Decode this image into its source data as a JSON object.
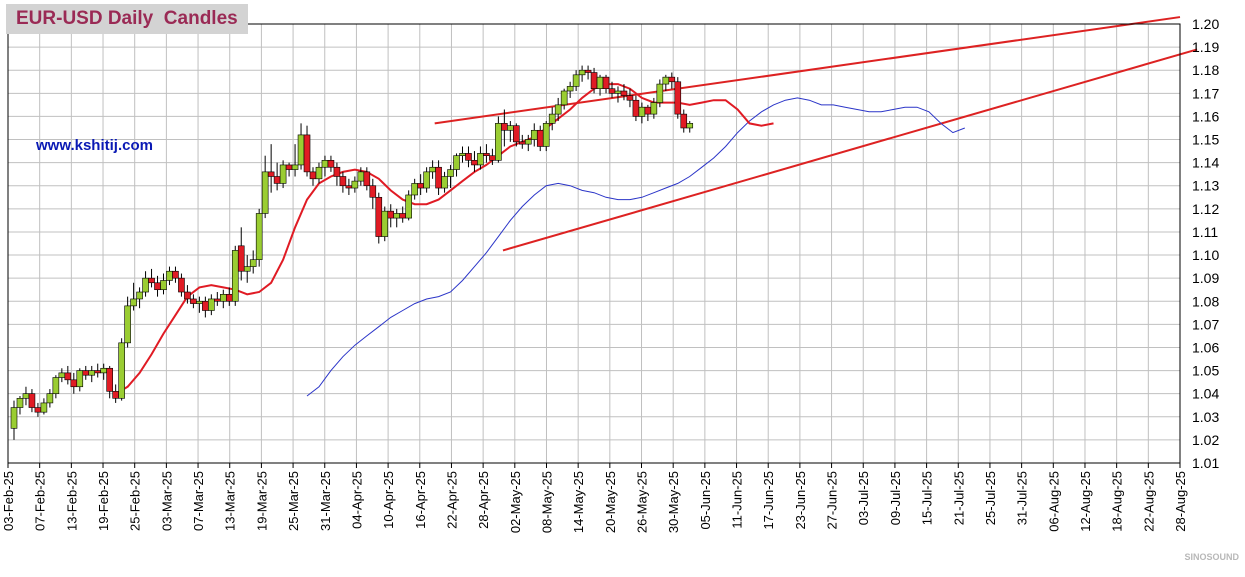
{
  "title": "EUR-USD Daily  Candles",
  "website": "www.kshitij.com",
  "watermark": "SINOSOUND",
  "colors": {
    "up_candle": "#9acd32",
    "down_candle": "#e01b24",
    "wick": "#000000",
    "fast_ma": "#e01b24",
    "slow_ma": "#2b35c8",
    "trendline": "#dd2222",
    "grid": "#c0c0c0",
    "title_color": "#9a2a55",
    "title_bg": "#d3d3d3",
    "website_color": "#0a19b4"
  },
  "chart_data": {
    "type": "candlestick",
    "title": "EUR-USD Daily  Candles",
    "ylim": [
      1.01,
      1.2
    ],
    "y_ticks": [
      "1.01",
      "1.02",
      "1.03",
      "1.04",
      "1.05",
      "1.06",
      "1.07",
      "1.08",
      "1.09",
      "1.10",
      "1.11",
      "1.12",
      "1.13",
      "1.14",
      "1.15",
      "1.16",
      "1.17",
      "1.18",
      "1.19",
      "1.20"
    ],
    "x_range": [
      "2025-02-03",
      "2025-08-28"
    ],
    "x_tick_labels": [
      "03-Feb-25",
      "07-Feb-25",
      "13-Feb-25",
      "19-Feb-25",
      "25-Feb-25",
      "03-Mar-25",
      "07-Mar-25",
      "13-Mar-25",
      "19-Mar-25",
      "25-Mar-25",
      "31-Mar-25",
      "04-Apr-25",
      "10-Apr-25",
      "16-Apr-25",
      "22-Apr-25",
      "28-Apr-25",
      "02-May-25",
      "08-May-25",
      "14-May-25",
      "20-May-25",
      "26-May-25",
      "30-May-25",
      "05-Jun-25",
      "11-Jun-25",
      "17-Jun-25",
      "23-Jun-25",
      "27-Jun-25",
      "03-Jul-25",
      "09-Jul-25",
      "15-Jul-25",
      "21-Jul-25",
      "25-Jul-25",
      "31-Jul-25",
      "06-Aug-25",
      "12-Aug-25",
      "18-Aug-25",
      "22-Aug-25",
      "28-Aug-25"
    ],
    "grid": true,
    "candles": [
      [
        0,
        1.025,
        1.037,
        1.02,
        1.034
      ],
      [
        1,
        1.034,
        1.039,
        1.031,
        1.038
      ],
      [
        2,
        1.038,
        1.043,
        1.035,
        1.04
      ],
      [
        3,
        1.04,
        1.042,
        1.032,
        1.034
      ],
      [
        4,
        1.034,
        1.036,
        1.03,
        1.032
      ],
      [
        5,
        1.032,
        1.038,
        1.031,
        1.036
      ],
      [
        6,
        1.036,
        1.042,
        1.034,
        1.04
      ],
      [
        7,
        1.04,
        1.048,
        1.038,
        1.047
      ],
      [
        8,
        1.047,
        1.051,
        1.045,
        1.049
      ],
      [
        9,
        1.049,
        1.052,
        1.044,
        1.046
      ],
      [
        10,
        1.046,
        1.049,
        1.04,
        1.043
      ],
      [
        11,
        1.043,
        1.051,
        1.041,
        1.05
      ],
      [
        12,
        1.05,
        1.052,
        1.046,
        1.048
      ],
      [
        13,
        1.048,
        1.052,
        1.045,
        1.05
      ],
      [
        14,
        1.05,
        1.053,
        1.047,
        1.049
      ],
      [
        15,
        1.049,
        1.053,
        1.046,
        1.051
      ],
      [
        16,
        1.051,
        1.052,
        1.038,
        1.041
      ],
      [
        17,
        1.041,
        1.044,
        1.036,
        1.038
      ],
      [
        18,
        1.038,
        1.064,
        1.037,
        1.062
      ],
      [
        19,
        1.062,
        1.082,
        1.06,
        1.078
      ],
      [
        20,
        1.078,
        1.088,
        1.076,
        1.081
      ],
      [
        21,
        1.081,
        1.086,
        1.077,
        1.084
      ],
      [
        22,
        1.084,
        1.093,
        1.082,
        1.09
      ],
      [
        23,
        1.09,
        1.094,
        1.086,
        1.088
      ],
      [
        24,
        1.088,
        1.091,
        1.082,
        1.085
      ],
      [
        25,
        1.085,
        1.092,
        1.083,
        1.089
      ],
      [
        26,
        1.089,
        1.095,
        1.087,
        1.093
      ],
      [
        27,
        1.093,
        1.095,
        1.088,
        1.09
      ],
      [
        28,
        1.09,
        1.092,
        1.082,
        1.084
      ],
      [
        29,
        1.084,
        1.087,
        1.079,
        1.081
      ],
      [
        30,
        1.081,
        1.083,
        1.077,
        1.079
      ],
      [
        31,
        1.079,
        1.082,
        1.075,
        1.08
      ],
      [
        32,
        1.08,
        1.082,
        1.073,
        1.076
      ],
      [
        33,
        1.076,
        1.083,
        1.074,
        1.081
      ],
      [
        34,
        1.081,
        1.084,
        1.078,
        1.08
      ],
      [
        35,
        1.08,
        1.085,
        1.077,
        1.083
      ],
      [
        36,
        1.083,
        1.086,
        1.078,
        1.08
      ],
      [
        37,
        1.08,
        1.104,
        1.078,
        1.102
      ],
      [
        38,
        1.104,
        1.112,
        1.089,
        1.093
      ],
      [
        39,
        1.093,
        1.1,
        1.088,
        1.095
      ],
      [
        40,
        1.095,
        1.102,
        1.092,
        1.098
      ],
      [
        41,
        1.098,
        1.12,
        1.095,
        1.118
      ],
      [
        42,
        1.118,
        1.143,
        1.116,
        1.136
      ],
      [
        43,
        1.136,
        1.148,
        1.127,
        1.134
      ],
      [
        44,
        1.134,
        1.14,
        1.128,
        1.131
      ],
      [
        45,
        1.131,
        1.141,
        1.129,
        1.139
      ],
      [
        46,
        1.139,
        1.14,
        1.134,
        1.137
      ],
      [
        47,
        1.137,
        1.148,
        1.134,
        1.139
      ],
      [
        48,
        1.139,
        1.157,
        1.137,
        1.152
      ],
      [
        49,
        1.152,
        1.156,
        1.134,
        1.136
      ],
      [
        50,
        1.136,
        1.138,
        1.13,
        1.133
      ],
      [
        51,
        1.133,
        1.14,
        1.131,
        1.138
      ],
      [
        52,
        1.138,
        1.143,
        1.134,
        1.141
      ],
      [
        53,
        1.141,
        1.143,
        1.136,
        1.138
      ],
      [
        54,
        1.138,
        1.14,
        1.13,
        1.134
      ],
      [
        55,
        1.134,
        1.136,
        1.127,
        1.13
      ],
      [
        56,
        1.13,
        1.133,
        1.126,
        1.129
      ],
      [
        57,
        1.129,
        1.134,
        1.127,
        1.132
      ],
      [
        58,
        1.132,
        1.138,
        1.13,
        1.136
      ],
      [
        59,
        1.136,
        1.138,
        1.128,
        1.13
      ],
      [
        60,
        1.13,
        1.133,
        1.12,
        1.125
      ],
      [
        61,
        1.125,
        1.127,
        1.105,
        1.108
      ],
      [
        62,
        1.108,
        1.121,
        1.106,
        1.119
      ],
      [
        63,
        1.119,
        1.122,
        1.112,
        1.116
      ],
      [
        64,
        1.116,
        1.12,
        1.112,
        1.118
      ],
      [
        65,
        1.118,
        1.121,
        1.114,
        1.116
      ],
      [
        66,
        1.116,
        1.128,
        1.115,
        1.126
      ],
      [
        67,
        1.126,
        1.133,
        1.124,
        1.131
      ],
      [
        68,
        1.131,
        1.135,
        1.126,
        1.129
      ],
      [
        69,
        1.129,
        1.138,
        1.127,
        1.136
      ],
      [
        70,
        1.136,
        1.141,
        1.133,
        1.138
      ],
      [
        71,
        1.138,
        1.141,
        1.126,
        1.129
      ],
      [
        72,
        1.129,
        1.136,
        1.127,
        1.134
      ],
      [
        73,
        1.134,
        1.139,
        1.129,
        1.137
      ],
      [
        74,
        1.137,
        1.144,
        1.134,
        1.143
      ],
      [
        75,
        1.143,
        1.147,
        1.14,
        1.144
      ],
      [
        76,
        1.144,
        1.147,
        1.138,
        1.141
      ],
      [
        77,
        1.141,
        1.145,
        1.136,
        1.139
      ],
      [
        78,
        1.139,
        1.147,
        1.137,
        1.144
      ],
      [
        79,
        1.144,
        1.148,
        1.14,
        1.143
      ],
      [
        80,
        1.143,
        1.146,
        1.139,
        1.141
      ],
      [
        81,
        1.141,
        1.16,
        1.14,
        1.157
      ],
      [
        82,
        1.157,
        1.163,
        1.147,
        1.154
      ],
      [
        83,
        1.154,
        1.158,
        1.149,
        1.156
      ],
      [
        84,
        1.156,
        1.157,
        1.147,
        1.149
      ],
      [
        85,
        1.149,
        1.152,
        1.146,
        1.148
      ],
      [
        86,
        1.148,
        1.152,
        1.145,
        1.15
      ],
      [
        87,
        1.15,
        1.157,
        1.147,
        1.154
      ],
      [
        88,
        1.154,
        1.156,
        1.145,
        1.147
      ],
      [
        89,
        1.147,
        1.158,
        1.145,
        1.157
      ],
      [
        90,
        1.157,
        1.164,
        1.154,
        1.161
      ],
      [
        91,
        1.161,
        1.168,
        1.158,
        1.165
      ],
      [
        92,
        1.165,
        1.172,
        1.163,
        1.171
      ],
      [
        93,
        1.171,
        1.175,
        1.168,
        1.173
      ],
      [
        94,
        1.173,
        1.18,
        1.171,
        1.178
      ],
      [
        95,
        1.178,
        1.182,
        1.175,
        1.18
      ],
      [
        96,
        1.18,
        1.182,
        1.176,
        1.179
      ],
      [
        97,
        1.179,
        1.181,
        1.17,
        1.172
      ],
      [
        98,
        1.172,
        1.178,
        1.169,
        1.177
      ],
      [
        99,
        1.177,
        1.178,
        1.17,
        1.172
      ],
      [
        100,
        1.172,
        1.175,
        1.168,
        1.17
      ],
      [
        101,
        1.17,
        1.173,
        1.166,
        1.171
      ],
      [
        102,
        1.171,
        1.174,
        1.167,
        1.169
      ],
      [
        103,
        1.169,
        1.172,
        1.164,
        1.167
      ],
      [
        104,
        1.167,
        1.169,
        1.158,
        1.16
      ],
      [
        105,
        1.16,
        1.166,
        1.157,
        1.164
      ],
      [
        106,
        1.164,
        1.165,
        1.158,
        1.161
      ],
      [
        107,
        1.161,
        1.168,
        1.159,
        1.166
      ],
      [
        108,
        1.166,
        1.176,
        1.164,
        1.174
      ],
      [
        109,
        1.174,
        1.178,
        1.171,
        1.177
      ],
      [
        110,
        1.177,
        1.179,
        1.172,
        1.175
      ],
      [
        111,
        1.175,
        1.177,
        1.159,
        1.161
      ],
      [
        112,
        1.161,
        1.163,
        1.153,
        1.155
      ],
      [
        113,
        1.155,
        1.158,
        1.153,
        1.157
      ]
    ],
    "fast_ma": [
      [
        17,
        1.04
      ],
      [
        19,
        1.043
      ],
      [
        21,
        1.049
      ],
      [
        23,
        1.057
      ],
      [
        25,
        1.066
      ],
      [
        27,
        1.074
      ],
      [
        29,
        1.082
      ],
      [
        31,
        1.086
      ],
      [
        33,
        1.087
      ],
      [
        35,
        1.086
      ],
      [
        37,
        1.085
      ],
      [
        39,
        1.083
      ],
      [
        41,
        1.084
      ],
      [
        43,
        1.088
      ],
      [
        45,
        1.098
      ],
      [
        47,
        1.112
      ],
      [
        49,
        1.124
      ],
      [
        51,
        1.131
      ],
      [
        53,
        1.134
      ],
      [
        55,
        1.136
      ],
      [
        57,
        1.137
      ],
      [
        59,
        1.136
      ],
      [
        61,
        1.133
      ],
      [
        63,
        1.128
      ],
      [
        65,
        1.124
      ],
      [
        67,
        1.122
      ],
      [
        69,
        1.122
      ],
      [
        71,
        1.124
      ],
      [
        73,
        1.128
      ],
      [
        75,
        1.132
      ],
      [
        77,
        1.136
      ],
      [
        79,
        1.139
      ],
      [
        81,
        1.143
      ],
      [
        83,
        1.147
      ],
      [
        85,
        1.149
      ],
      [
        87,
        1.151
      ],
      [
        89,
        1.155
      ],
      [
        91,
        1.159
      ],
      [
        93,
        1.163
      ],
      [
        95,
        1.168
      ],
      [
        97,
        1.172
      ],
      [
        99,
        1.174
      ],
      [
        101,
        1.174
      ],
      [
        103,
        1.172
      ],
      [
        105,
        1.168
      ],
      [
        107,
        1.166
      ],
      [
        109,
        1.166
      ],
      [
        111,
        1.166
      ],
      [
        113,
        1.165
      ],
      [
        115,
        1.166
      ],
      [
        117,
        1.167
      ],
      [
        119,
        1.167
      ],
      [
        121,
        1.163
      ],
      [
        123,
        1.157
      ],
      [
        125,
        1.156
      ],
      [
        127,
        1.157
      ]
    ],
    "slow_ma": [
      [
        49,
        1.039
      ],
      [
        51,
        1.043
      ],
      [
        53,
        1.05
      ],
      [
        55,
        1.056
      ],
      [
        57,
        1.061
      ],
      [
        59,
        1.065
      ],
      [
        61,
        1.069
      ],
      [
        63,
        1.073
      ],
      [
        65,
        1.076
      ],
      [
        67,
        1.079
      ],
      [
        69,
        1.081
      ],
      [
        71,
        1.082
      ],
      [
        73,
        1.084
      ],
      [
        75,
        1.089
      ],
      [
        77,
        1.095
      ],
      [
        79,
        1.101
      ],
      [
        81,
        1.108
      ],
      [
        83,
        1.115
      ],
      [
        85,
        1.121
      ],
      [
        87,
        1.126
      ],
      [
        89,
        1.13
      ],
      [
        91,
        1.131
      ],
      [
        93,
        1.13
      ],
      [
        95,
        1.128
      ],
      [
        97,
        1.127
      ],
      [
        99,
        1.125
      ],
      [
        101,
        1.124
      ],
      [
        103,
        1.124
      ],
      [
        105,
        1.125
      ],
      [
        107,
        1.127
      ],
      [
        109,
        1.129
      ],
      [
        111,
        1.131
      ],
      [
        113,
        1.134
      ],
      [
        115,
        1.138
      ],
      [
        117,
        1.142
      ],
      [
        119,
        1.147
      ],
      [
        121,
        1.153
      ],
      [
        123,
        1.158
      ],
      [
        125,
        1.162
      ],
      [
        127,
        1.165
      ],
      [
        129,
        1.167
      ],
      [
        131,
        1.168
      ],
      [
        133,
        1.167
      ],
      [
        135,
        1.165
      ],
      [
        137,
        1.165
      ],
      [
        139,
        1.164
      ],
      [
        141,
        1.163
      ],
      [
        143,
        1.162
      ],
      [
        145,
        1.162
      ],
      [
        147,
        1.163
      ],
      [
        149,
        1.164
      ],
      [
        151,
        1.164
      ],
      [
        153,
        1.162
      ],
      [
        155,
        1.157
      ],
      [
        157,
        1.153
      ],
      [
        159,
        1.155
      ]
    ],
    "trendlines": [
      {
        "from": [
          "2025-04-19",
          1.157
        ],
        "to": [
          "2025-08-28",
          1.203
        ]
      },
      {
        "from": [
          "2025-05-01",
          1.102
        ],
        "to": [
          "2025-08-31",
          1.189
        ]
      }
    ]
  }
}
